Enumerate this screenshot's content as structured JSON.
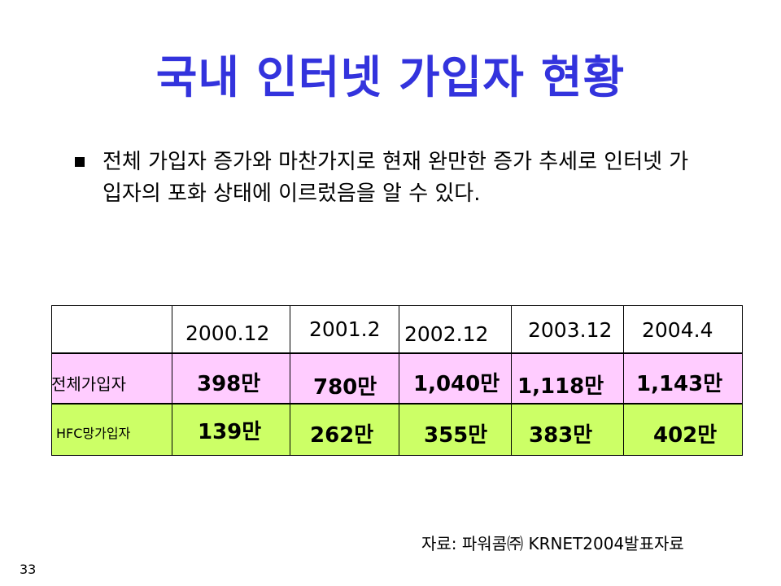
{
  "title": "국내 인터넷 가입자 현황",
  "bullet": "전체 가입자 증가와 마찬가지로 현재 완만한 증가 추세로 인터넷 가입자의 포화 상태에 이르렀음을 알 수 있다.",
  "table": {
    "row_labels": {
      "total": "전체가입자",
      "hfc": "HFC망가입자"
    },
    "columns": [
      {
        "year": "2000.12",
        "total": "398만",
        "hfc": "139만"
      },
      {
        "year": "2001.2",
        "total": "780만",
        "hfc": "262만"
      },
      {
        "year": "2002.12",
        "total": "1,040만",
        "hfc": "355만"
      },
      {
        "year": "2003.12",
        "total": "1,118만",
        "hfc": "383만"
      },
      {
        "year": "2004.4",
        "total": "1,143만",
        "hfc": "402만"
      }
    ],
    "colors": {
      "total_row": "#ffccff",
      "hfc_row": "#ccff66"
    }
  },
  "source": "자료: 파워콤㈜ KRNET2004발표자료",
  "page_number": "33"
}
